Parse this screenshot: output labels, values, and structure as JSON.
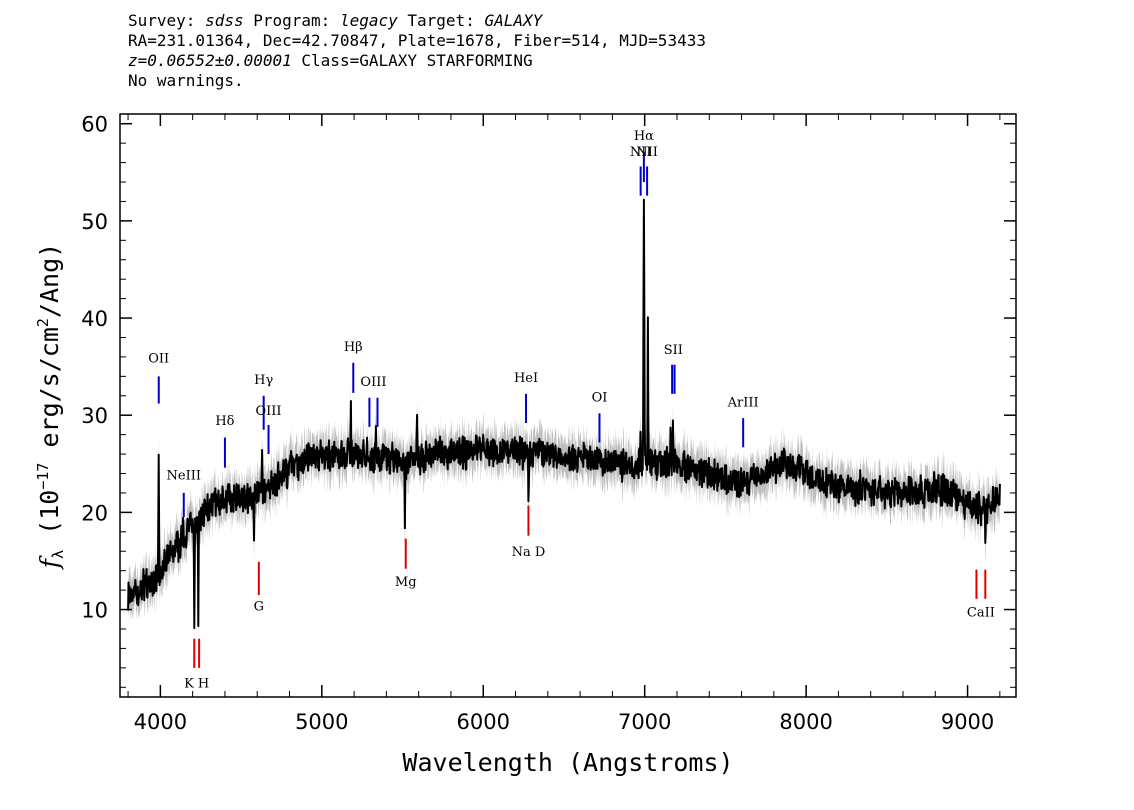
{
  "header": {
    "survey_label": "Survey:",
    "survey": "sdss",
    "program_label": "Program:",
    "program": "legacy",
    "target_label": "Target:",
    "target": "GALAXY",
    "line2": "RA=231.01364, Dec=42.70847, Plate=1678, Fiber=514, MJD=53433",
    "redshift": "z=0.06552±0.00001",
    "class_text": "Class=GALAXY STARFORMING",
    "warnings": "No warnings."
  },
  "colors": {
    "flux": "#000000",
    "error": "#bdbdbd",
    "emission_marker": "#0000cc",
    "absorption_marker": "#dd0000"
  },
  "chart_data": {
    "type": "line",
    "xlabel": "Wavelength (Angstroms)",
    "ylabel_parts": [
      "f",
      "λ",
      " (10",
      "−17",
      " erg/s/cm",
      "2",
      "/Ang)"
    ],
    "xlim": [
      3750,
      9300
    ],
    "ylim": [
      1,
      61
    ],
    "x_ticks": [
      4000,
      5000,
      6000,
      7000,
      8000,
      9000
    ],
    "y_ticks": [
      10,
      20,
      30,
      40,
      50,
      60
    ],
    "grid": false,
    "series": [
      {
        "role": "flux",
        "continuum_x": [
          3800,
          3900,
          3980,
          4050,
          4150,
          4250,
          4300,
          4400,
          4500,
          4600,
          4700,
          4800,
          4900,
          5000,
          5150,
          5300,
          5400,
          5500,
          5600,
          5700,
          5850,
          6000,
          6150,
          6280,
          6400,
          6600,
          6800,
          7000,
          7100,
          7200,
          7300,
          7400,
          7500,
          7600,
          7700,
          7850,
          8000,
          8100,
          8200,
          8300,
          8400,
          8500,
          8600,
          8700,
          8800,
          8900,
          9000,
          9100,
          9150,
          9200
        ],
        "continuum_y": [
          11.5,
          12.5,
          13.5,
          15.5,
          17.5,
          19.5,
          20.5,
          21.5,
          21.5,
          21.5,
          23.0,
          24.5,
          25.5,
          26.0,
          26.0,
          25.5,
          25.5,
          25.0,
          25.5,
          26.0,
          26.0,
          26.5,
          26.5,
          26.0,
          26.0,
          25.5,
          25.0,
          25.0,
          25.0,
          25.0,
          24.5,
          24.0,
          23.5,
          23.0,
          23.5,
          25.0,
          24.5,
          23.0,
          22.5,
          22.5,
          22.5,
          22.0,
          22.0,
          22.0,
          22.5,
          22.0,
          21.0,
          20.0,
          21.0,
          22.0
        ],
        "features": [
          {
            "name": "OII",
            "x": 3990,
            "peak": 27.0
          },
          {
            "name": "NeIII",
            "x": 4140,
            "peak": 19.0
          },
          {
            "name": "K",
            "x": 4210,
            "peak": 7.5
          },
          {
            "name": "H",
            "x": 4235,
            "peak": 8.0
          },
          {
            "name": "Hδ",
            "x": 4380,
            "peak": 20.0
          },
          {
            "name": "G",
            "x": 4580,
            "peak": 16.0
          },
          {
            "name": "Hγ",
            "x": 4630,
            "peak": 27.0
          },
          {
            "name": "Hβ",
            "x": 5180,
            "peak": 31.0
          },
          {
            "name": "OIII",
            "x": 5280,
            "peak": 27.5
          },
          {
            "name": "OIII",
            "x": 5335,
            "peak": 29.0
          },
          {
            "name": "Mg",
            "x": 5515,
            "peak": 19.0
          },
          {
            "name": "HeI",
            "x": 5590,
            "peak": 30.5
          },
          {
            "name": "Na D",
            "x": 6280,
            "peak": 22.0
          },
          {
            "name": "OI",
            "x": 6715,
            "peak": 26.0
          },
          {
            "name": "NII",
            "x": 6975,
            "peak": 29.5
          },
          {
            "name": "Hα",
            "x": 6995,
            "peak": 52.0
          },
          {
            "name": "NII",
            "x": 7020,
            "peak": 40.0
          },
          {
            "name": "SII",
            "x": 7160,
            "peak": 30.0
          },
          {
            "name": "SII",
            "x": 7175,
            "peak": 28.0
          },
          {
            "name": "CaII",
            "x": 9110,
            "peak": 15.5
          }
        ]
      },
      {
        "role": "error_envelope",
        "half_width": 1.3
      }
    ],
    "line_markers": [
      {
        "label": "OII",
        "kind": "emission",
        "x": [
          3990
        ],
        "y_range": [
          31.2,
          34.0
        ],
        "label_y": 35.4
      },
      {
        "label": "NeIII",
        "kind": "emission",
        "x": [
          4145
        ],
        "y_range": [
          19.5,
          22.0
        ],
        "label_y": 23.4
      },
      {
        "label": "Hδ",
        "kind": "emission",
        "x": [
          4400
        ],
        "y_range": [
          24.6,
          27.7
        ],
        "label_y": 29.0
      },
      {
        "label": "Hγ",
        "kind": "emission",
        "x": [
          4640
        ],
        "y_range": [
          28.5,
          32.0
        ],
        "label_y": 33.2
      },
      {
        "label": "OIII",
        "kind": "emission",
        "x": [
          4670
        ],
        "y_range": [
          26.0,
          29.0
        ],
        "label_y": 30.0
      },
      {
        "label": "Hβ",
        "kind": "emission",
        "x": [
          5195
        ],
        "y_range": [
          32.3,
          35.4
        ],
        "label_y": 36.6
      },
      {
        "label": "OIII",
        "kind": "emission",
        "x": [
          5295,
          5345
        ],
        "y_range": [
          28.8,
          31.8
        ],
        "label_y": 33.0
      },
      {
        "label": "HeI",
        "kind": "emission",
        "x": [
          6265
        ],
        "y_range": [
          29.2,
          32.2
        ],
        "label_y": 33.4
      },
      {
        "label": "OI",
        "kind": "emission",
        "x": [
          6720
        ],
        "y_range": [
          27.2,
          30.2
        ],
        "label_y": 31.4
      },
      {
        "label": "Hα",
        "kind": "emission",
        "x": [
          6995
        ],
        "y_range": [
          54.0,
          57.1
        ],
        "label_y": 58.3
      },
      {
        "label": "NII",
        "kind": "emission",
        "x": [
          6975
        ],
        "y_range": [
          52.6,
          55.6
        ],
        "label_y": 56.7
      },
      {
        "label": "NII",
        "kind": "emission",
        "x": [
          7015
        ],
        "y_range": [
          52.6,
          55.6
        ],
        "label_y": 56.7
      },
      {
        "label": "SII",
        "kind": "emission",
        "x": [
          7170,
          7185
        ],
        "y_range": [
          32.2,
          35.2
        ],
        "label_y": 36.3
      },
      {
        "label": "ArIII",
        "kind": "emission",
        "x": [
          7610
        ],
        "y_range": [
          26.7,
          29.7
        ],
        "label_y": 30.9
      },
      {
        "label": "K H",
        "kind": "absorption",
        "x": [
          4210,
          4240
        ],
        "y_range": [
          4.0,
          7.0
        ],
        "label_y": 2.0
      },
      {
        "label": "G",
        "kind": "absorption",
        "x": [
          4610
        ],
        "y_range": [
          11.5,
          14.9
        ],
        "label_y": 9.9
      },
      {
        "label": "Mg",
        "kind": "absorption",
        "x": [
          5520
        ],
        "y_range": [
          14.2,
          17.3
        ],
        "label_y": 12.4
      },
      {
        "label": "Na D",
        "kind": "absorption",
        "x": [
          6280
        ],
        "y_range": [
          17.6,
          20.7
        ],
        "label_y": 15.5
      },
      {
        "label": "CaII",
        "kind": "absorption",
        "x": [
          9055,
          9110
        ],
        "y_range": [
          11.1,
          14.1
        ],
        "label_y": 9.3
      }
    ]
  }
}
